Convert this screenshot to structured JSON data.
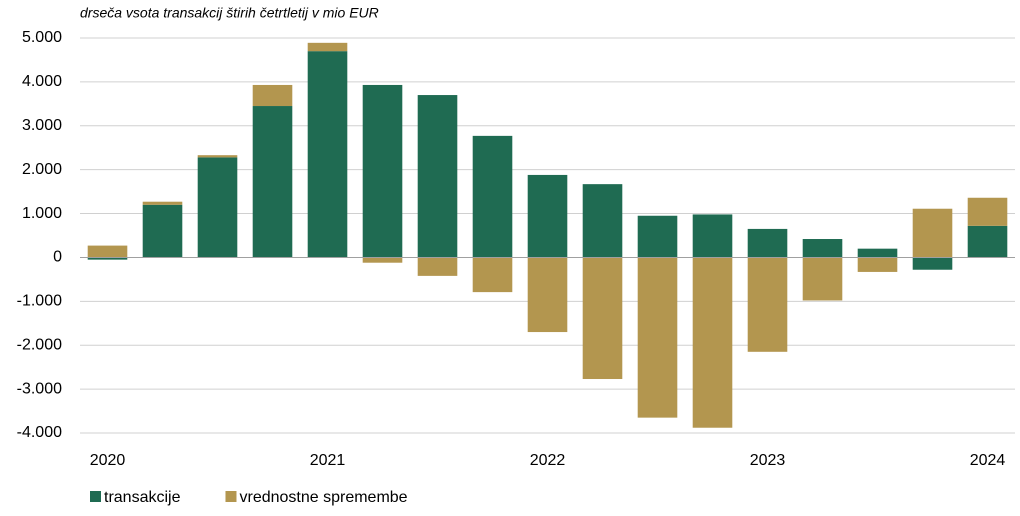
{
  "chart_data": {
    "type": "bar",
    "stacked": true,
    "subtitle": "drseča vsota transakcij štirih četrtletij v mio EUR",
    "categories": [
      "2020",
      null,
      null,
      null,
      "2021",
      null,
      null,
      null,
      "2022",
      null,
      null,
      null,
      "2023",
      null,
      null,
      null,
      "2024"
    ],
    "series": [
      {
        "name": "transakcije",
        "color": "#1f6b52",
        "values": [
          -50,
          1200,
          2280,
          3450,
          4700,
          3930,
          3700,
          2770,
          1880,
          1670,
          950,
          980,
          650,
          420,
          200,
          -280,
          720
        ]
      },
      {
        "name": "vrednostne spremembe",
        "color": "#b3964f",
        "values": [
          270,
          70,
          50,
          480,
          190,
          -120,
          -420,
          -790,
          -1700,
          -2770,
          -3650,
          -3880,
          -2150,
          -980,
          -330,
          1110,
          640
        ]
      }
    ],
    "ylim": [
      -4000,
      5000
    ],
    "yticks": [
      {
        "value": -4000,
        "label": "-4.000"
      },
      {
        "value": -3000,
        "label": "-3.000"
      },
      {
        "value": -2000,
        "label": "-2.000"
      },
      {
        "value": -1000,
        "label": "-1.000"
      },
      0,
      {
        "value": 1000,
        "label": "1.000"
      },
      {
        "value": 2000,
        "label": "2.000"
      },
      {
        "value": 3000,
        "label": "3.000"
      },
      {
        "value": 4000,
        "label": "4.000"
      },
      {
        "value": 5000,
        "label": "5.000"
      }
    ],
    "grid": true,
    "legend": "bottom-left"
  }
}
